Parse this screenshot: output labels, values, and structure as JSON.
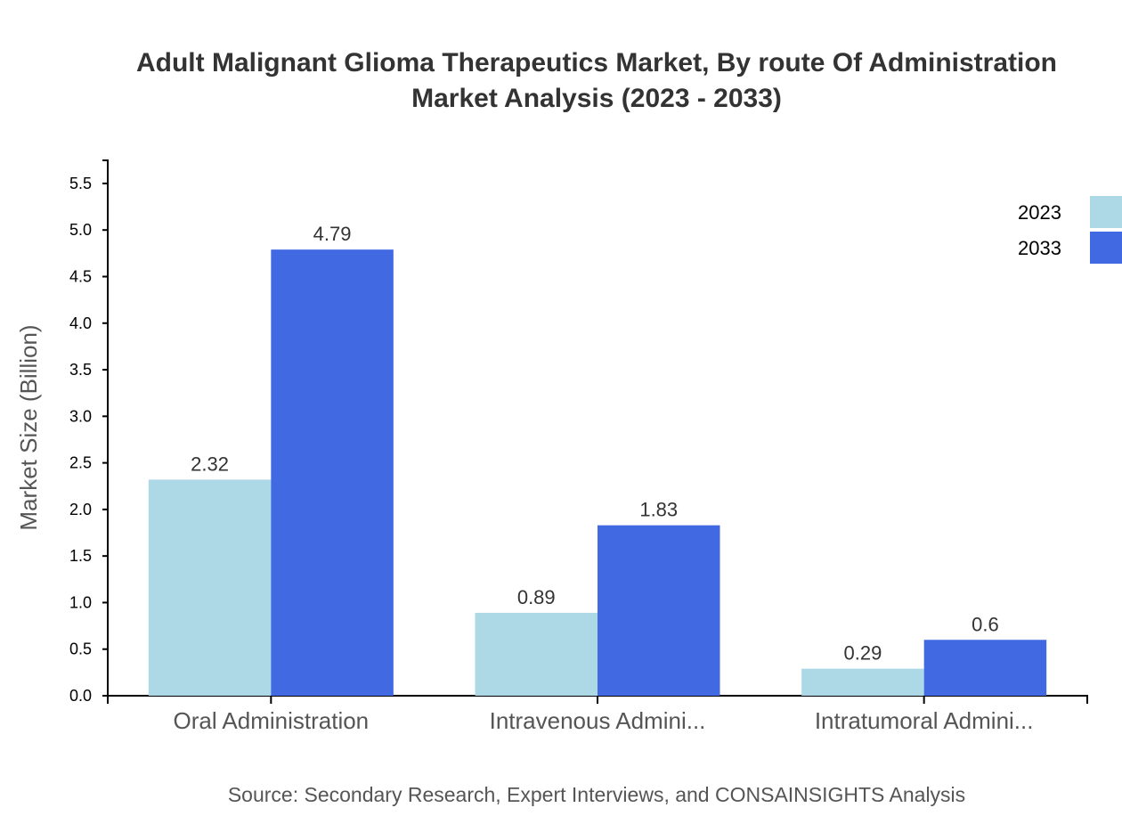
{
  "chart_data": {
    "type": "bar",
    "title": "Adult Malignant Glioma Therapeutics Market, By route Of Administration",
    "subtitle": "Market Analysis (2023 - 2033)",
    "xlabel": "",
    "ylabel": "Market Size (Billion)",
    "categories": [
      "Oral Administration",
      "Intravenous Admini...",
      "Intratumoral Admini..."
    ],
    "series": [
      {
        "name": "2023",
        "values": [
          2.32,
          0.89,
          0.29
        ],
        "color": "#add8e6"
      },
      {
        "name": "2033",
        "values": [
          4.79,
          1.83,
          0.6
        ],
        "color": "#4169e1"
      }
    ],
    "ylim": [
      0,
      5.748
    ],
    "yticks": [
      "0.0",
      "0.5",
      "1.0",
      "1.5",
      "2.0",
      "2.5",
      "3.0",
      "3.5",
      "4.0",
      "4.5",
      "5.0",
      "5.5"
    ],
    "grid": false,
    "legend": "top-right",
    "source": "Source: Secondary Research, Expert Interviews, and CONSAINSIGHTS Analysis"
  }
}
